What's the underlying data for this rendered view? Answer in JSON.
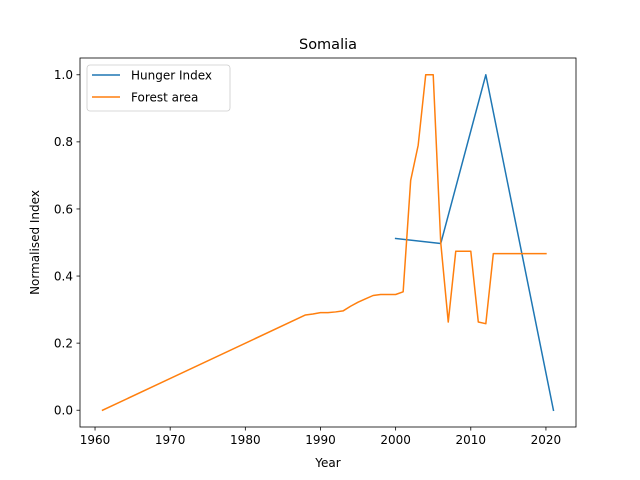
{
  "chart_data": {
    "type": "line",
    "title": "Somalia",
    "xlabel": "Year",
    "ylabel": "Normalised Index",
    "xlim": [
      1958,
      2024
    ],
    "ylim": [
      -0.05,
      1.05
    ],
    "xticks": [
      1960,
      1970,
      1980,
      1990,
      2000,
      2010,
      2020
    ],
    "yticks": [
      0.0,
      0.2,
      0.4,
      0.6,
      0.8,
      1.0
    ],
    "ytick_labels": [
      "0.0",
      "0.2",
      "0.4",
      "0.6",
      "0.8",
      "1.0"
    ],
    "grid": false,
    "legend_position": "top-left",
    "series": [
      {
        "name": "Hunger Index",
        "color": "#1f77b4",
        "x": [
          2000,
          2006,
          2012,
          2021
        ],
        "y": [
          0.512,
          0.497,
          1.0,
          0.0
        ]
      },
      {
        "name": "Forest area",
        "color": "#ff7f0e",
        "x": [
          1961,
          1988,
          1989,
          1990,
          1991,
          1992,
          1993,
          1994,
          1995,
          1996,
          1997,
          1998,
          1999,
          2000,
          2001,
          2002,
          2003,
          2004,
          2005,
          2006,
          2007,
          2008,
          2009,
          2010,
          2011,
          2012,
          2013,
          2014,
          2015,
          2016,
          2017,
          2018,
          2019,
          2020
        ],
        "y": [
          0.0,
          0.284,
          0.287,
          0.291,
          0.291,
          0.293,
          0.296,
          0.31,
          0.322,
          0.332,
          0.342,
          0.345,
          0.345,
          0.345,
          0.353,
          0.685,
          0.79,
          1.0,
          1.0,
          0.5,
          0.263,
          0.474,
          0.474,
          0.474,
          0.263,
          0.258,
          0.467,
          0.467,
          0.467,
          0.467,
          0.467,
          0.467,
          0.467,
          0.467
        ]
      }
    ]
  }
}
